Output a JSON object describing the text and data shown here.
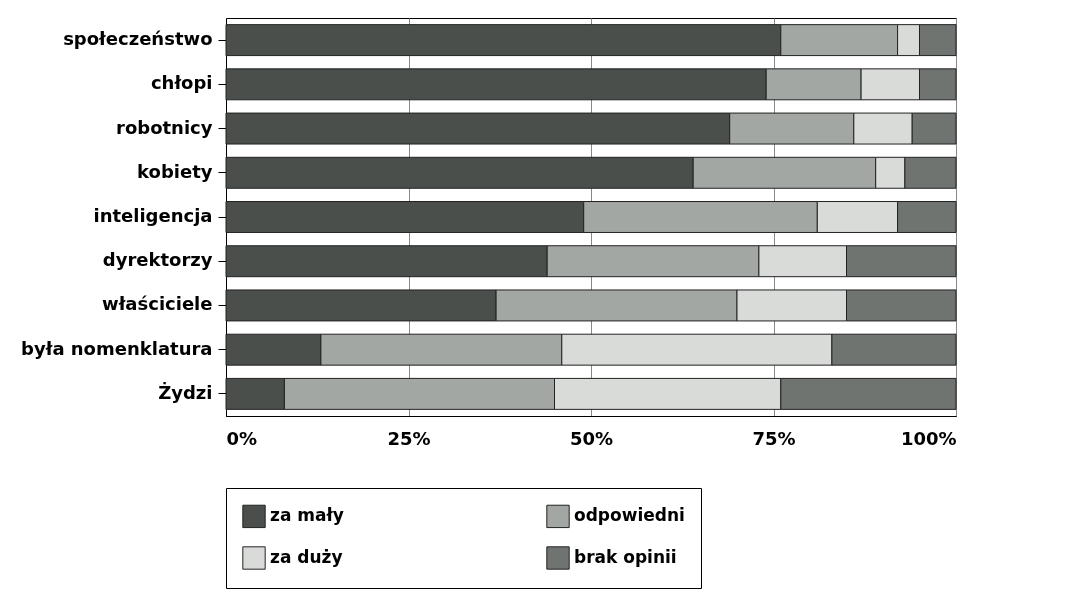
{
  "chart_data": {
    "type": "bar",
    "orientation": "horizontal",
    "stacked": true,
    "categories": [
      "społeczeństwo",
      "chłopi",
      "robotnicy",
      "kobiety",
      "inteligencja",
      "dyrektorzy",
      "właściciele",
      "była nomenklatura",
      "Żydzi"
    ],
    "series": [
      {
        "name": "za mały",
        "color": "#4a4f4c",
        "values": [
          76,
          74,
          69,
          64,
          49,
          44,
          37,
          13,
          8
        ]
      },
      {
        "name": "odpowiedni",
        "color": "#a3a7a4",
        "values": [
          16,
          13,
          17,
          25,
          32,
          29,
          33,
          33,
          37
        ]
      },
      {
        "name": "za duży",
        "color": "#d9dbd9",
        "values": [
          3,
          8,
          8,
          4,
          11,
          12,
          15,
          37,
          31
        ]
      },
      {
        "name": "brak opinii",
        "color": "#6f7471",
        "values": [
          5,
          5,
          6,
          7,
          8,
          15,
          15,
          17,
          24
        ]
      }
    ],
    "xlim": [
      0,
      100
    ],
    "xticks": [
      {
        "value": 0,
        "label": "0%"
      },
      {
        "value": 25,
        "label": "25%"
      },
      {
        "value": 50,
        "label": "50%"
      },
      {
        "value": 75,
        "label": "75%"
      },
      {
        "value": 100,
        "label": "100%"
      }
    ],
    "grid": "x",
    "legend": "bottom"
  }
}
